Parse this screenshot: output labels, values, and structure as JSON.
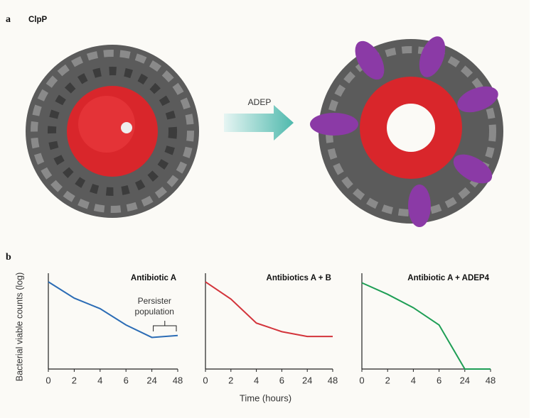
{
  "panel_a": {
    "label": "a",
    "title": "ClpP",
    "arrow_label": "ADEP"
  },
  "panel_b_label": "b",
  "chart_data": [
    {
      "type": "line",
      "title": "Antibiotic A",
      "ylabel": "Bacterial viable counts (log)",
      "categories": [
        "0",
        "2",
        "4",
        "6",
        "24",
        "48"
      ],
      "series": [
        {
          "color": "#2b6cb5",
          "values": [
            9.1,
            7.4,
            6.3,
            4.6,
            3.3,
            3.5
          ]
        }
      ],
      "ylim": [
        0,
        10
      ],
      "annotation_lines": [
        "Persister",
        "population"
      ]
    },
    {
      "type": "line",
      "title": "Antibiotics A + B",
      "xlabel": "Time (hours)",
      "categories": [
        "0",
        "2",
        "4",
        "6",
        "24",
        "48"
      ],
      "series": [
        {
          "color": "#d3343b",
          "values": [
            9.1,
            7.3,
            4.8,
            3.9,
            3.4,
            3.4
          ]
        }
      ],
      "ylim": [
        0,
        10
      ]
    },
    {
      "type": "line",
      "title": "Antibiotic A + ADEP4",
      "categories": [
        "0",
        "2",
        "4",
        "6",
        "24",
        "48"
      ],
      "series": [
        {
          "color": "#1e9e55",
          "values": [
            9.0,
            7.8,
            6.4,
            4.6,
            0,
            0
          ]
        }
      ],
      "ylim": [
        0,
        10
      ]
    }
  ]
}
